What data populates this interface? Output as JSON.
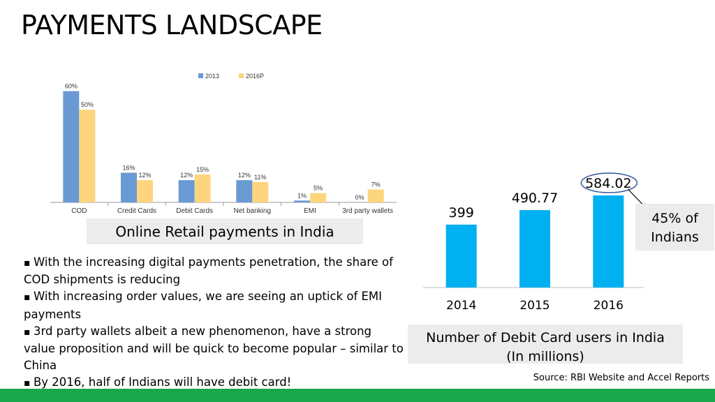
{
  "slide": {
    "title": "PAYMENTS LANDSCAPE",
    "source": "Source: RBI Website and Accel Reports",
    "footer_color": "#1aa64a"
  },
  "left_chart": {
    "caption": "Online Retail payments in India"
  },
  "right_chart": {
    "caption_line1": "Number of Debit Card users in India",
    "caption_line2": "(In millions)",
    "callout_line1": "45% of",
    "callout_line2": "Indians"
  },
  "bullets": [
    "With the increasing digital payments penetration, the share of COD shipments is reducing",
    "With increasing order values, we are seeing an uptick of EMI payments",
    "3rd party wallets albeit a new phenomenon, have a strong value proposition and will be quick to become popular – similar to China",
    "By 2016, half of Indians will have debit card!"
  ],
  "chart_data": [
    {
      "type": "bar",
      "categories": [
        "COD",
        "Credit Cards",
        "Debit Cards",
        "Net banking",
        "EMI",
        "3rd party wallets"
      ],
      "series": [
        {
          "name": "2013",
          "values": [
            60,
            16,
            12,
            12,
            1,
            0
          ],
          "labels": [
            "60%",
            "16%",
            "12%",
            "12%",
            "1%",
            "0%"
          ],
          "color": "#6a9ad4"
        },
        {
          "name": "2016P",
          "values": [
            50,
            12,
            15,
            11,
            5,
            7
          ],
          "labels": [
            "50%",
            "12%",
            "15%",
            "11%",
            "5%",
            "7%"
          ],
          "color": "#fdd57e"
        }
      ],
      "ylim": [
        0,
        70
      ],
      "legend": "top",
      "grid": false
    },
    {
      "type": "bar",
      "categories": [
        "2014",
        "2015",
        "2016"
      ],
      "values": [
        399,
        490.77,
        584.02
      ],
      "labels": [
        "399",
        "490.77",
        "584.02"
      ],
      "color": "#00b0f0",
      "highlight": "584.02",
      "ylim": [
        0,
        700
      ],
      "grid": false
    }
  ]
}
